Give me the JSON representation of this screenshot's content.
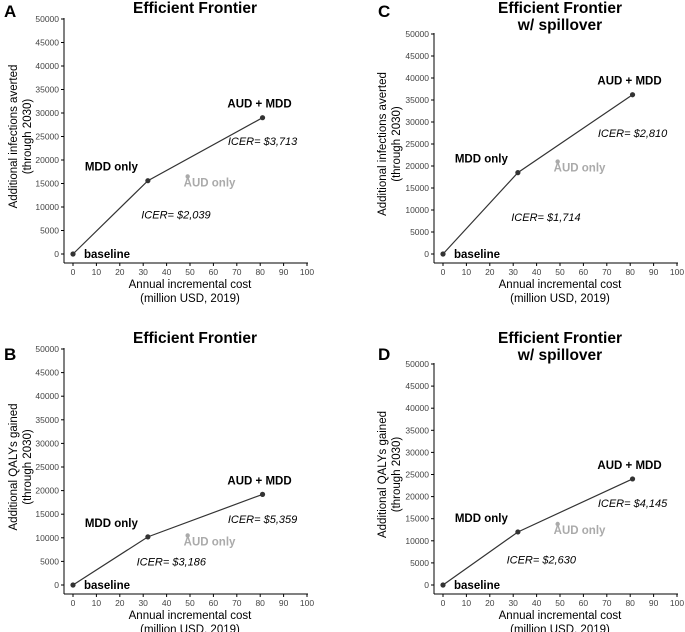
{
  "colors": {
    "line": "#333333",
    "point": "#333333",
    "dominated": "#aaaaaa",
    "axis": "#000000",
    "text": "#000000"
  },
  "chart_data": [
    {
      "type": "line",
      "panel_label": "A",
      "title": "Efficient Frontier",
      "subtitle": "",
      "xlabel_line1": "Annual incremental cost",
      "xlabel_line2": "(million USD, 2019)",
      "ylabel_line1": "Additional infections averted",
      "ylabel_line2": "(through 2030)",
      "xlim": [
        0,
        100
      ],
      "ylim": [
        0,
        50000
      ],
      "x_ticks": [
        0,
        10,
        20,
        30,
        40,
        50,
        60,
        70,
        80,
        90,
        100
      ],
      "y_ticks": [
        0,
        5000,
        10000,
        15000,
        20000,
        25000,
        30000,
        35000,
        40000,
        45000,
        50000
      ],
      "grid": false,
      "points": [
        {
          "label": "baseline",
          "x": 0,
          "y": 0,
          "dominated": false
        },
        {
          "label": "MDD only",
          "x": 32,
          "y": 15600,
          "dominated": false
        },
        {
          "label": "AUD only",
          "x": 49,
          "y": 16500,
          "dominated": true
        },
        {
          "label": "AUD + MDD",
          "x": 81,
          "y": 29000,
          "dominated": false
        }
      ],
      "frontier": [
        "baseline",
        "MDD only",
        "AUD + MDD"
      ],
      "icers": [
        {
          "text": "ICER= $2,039",
          "x": 44,
          "y": 8400
        },
        {
          "text": "ICER= $3,713",
          "x": 81,
          "y": 24000
        }
      ]
    },
    {
      "type": "line",
      "panel_label": "B",
      "title": "Efficient Frontier",
      "subtitle": "",
      "xlabel_line1": "Annual incremental cost",
      "xlabel_line2": "(million USD, 2019)",
      "ylabel_line1": "Additional QALYs gained",
      "ylabel_line2": "(through 2030)",
      "xlim": [
        0,
        100
      ],
      "ylim": [
        0,
        50000
      ],
      "x_ticks": [
        0,
        10,
        20,
        30,
        40,
        50,
        60,
        70,
        80,
        90,
        100
      ],
      "y_ticks": [
        0,
        5000,
        10000,
        15000,
        20000,
        25000,
        30000,
        35000,
        40000,
        45000,
        50000
      ],
      "grid": false,
      "points": [
        {
          "label": "baseline",
          "x": 0,
          "y": 0,
          "dominated": false
        },
        {
          "label": "MDD only",
          "x": 32,
          "y": 10200,
          "dominated": false
        },
        {
          "label": "AUD only",
          "x": 49,
          "y": 10500,
          "dominated": true
        },
        {
          "label": "AUD + MDD",
          "x": 81,
          "y": 19200,
          "dominated": false
        }
      ],
      "frontier": [
        "baseline",
        "MDD only",
        "AUD + MDD"
      ],
      "icers": [
        {
          "text": "ICER= $3,186",
          "x": 42,
          "y": 5000
        },
        {
          "text": "ICER= $5,359",
          "x": 81,
          "y": 14000
        }
      ]
    },
    {
      "type": "line",
      "panel_label": "C",
      "title": "Efficient Frontier",
      "subtitle": "w/ spillover",
      "xlabel_line1": "Annual incremental cost",
      "xlabel_line2": "(million USD, 2019)",
      "ylabel_line1": "Additional infections averted",
      "ylabel_line2": "(through 2030)",
      "xlim": [
        0,
        100
      ],
      "ylim": [
        0,
        50000
      ],
      "x_ticks": [
        0,
        10,
        20,
        30,
        40,
        50,
        60,
        70,
        80,
        90,
        100
      ],
      "y_ticks": [
        0,
        5000,
        10000,
        15000,
        20000,
        25000,
        30000,
        35000,
        40000,
        45000,
        50000
      ],
      "grid": false,
      "points": [
        {
          "label": "baseline",
          "x": 0,
          "y": 0,
          "dominated": false
        },
        {
          "label": "MDD only",
          "x": 32,
          "y": 18500,
          "dominated": false
        },
        {
          "label": "AUD only",
          "x": 49,
          "y": 21000,
          "dominated": true
        },
        {
          "label": "AUD + MDD",
          "x": 81,
          "y": 36200,
          "dominated": false
        }
      ],
      "frontier": [
        "baseline",
        "MDD only",
        "AUD + MDD"
      ],
      "icers": [
        {
          "text": "ICER= $1,714",
          "x": 44,
          "y": 8400
        },
        {
          "text": "ICER= $2,810",
          "x": 81,
          "y": 27500
        }
      ]
    },
    {
      "type": "line",
      "panel_label": "D",
      "title": "Efficient Frontier",
      "subtitle": "w/ spillover",
      "xlabel_line1": "Annual incremental cost",
      "xlabel_line2": "(million USD, 2019)",
      "ylabel_line1": "Additional QALYs gained",
      "ylabel_line2": "(through 2030)",
      "xlim": [
        0,
        100
      ],
      "ylim": [
        0,
        50000
      ],
      "x_ticks": [
        0,
        10,
        20,
        30,
        40,
        50,
        60,
        70,
        80,
        90,
        100
      ],
      "y_ticks": [
        0,
        5000,
        10000,
        15000,
        20000,
        25000,
        30000,
        35000,
        40000,
        45000,
        50000
      ],
      "grid": false,
      "points": [
        {
          "label": "baseline",
          "x": 0,
          "y": 0,
          "dominated": false
        },
        {
          "label": "MDD only",
          "x": 32,
          "y": 12000,
          "dominated": false
        },
        {
          "label": "AUD only",
          "x": 49,
          "y": 13800,
          "dominated": true
        },
        {
          "label": "AUD + MDD",
          "x": 81,
          "y": 24000,
          "dominated": false
        }
      ],
      "frontier": [
        "baseline",
        "MDD only",
        "AUD + MDD"
      ],
      "icers": [
        {
          "text": "ICER= $2,630",
          "x": 42,
          "y": 5800
        },
        {
          "text": "ICER= $4,145",
          "x": 81,
          "y": 18500
        }
      ]
    }
  ]
}
